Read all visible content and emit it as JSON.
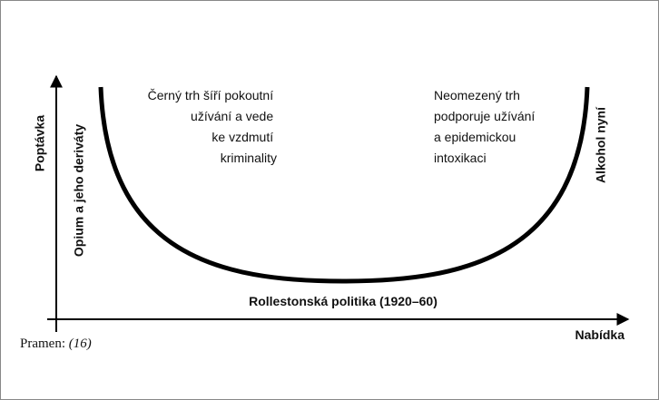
{
  "diagram": {
    "y_axis": "Poptávka",
    "x_axis": "Nabídka",
    "left_end": "Opium a jeho deriváty",
    "right_end": "Alkohol nyní",
    "bottom": "Rollestonská politika (1920–60)",
    "left_note": [
      "Černý trh šíří pokoutní",
      "užívání a vede",
      "ke vzdmutí",
      "kriminality"
    ],
    "right_note": [
      "Neomezený trh",
      "podporuje užívání",
      "a epidemickou",
      "intoxikaci"
    ]
  },
  "source": {
    "label": "Pramen:",
    "ref": "(16)"
  }
}
